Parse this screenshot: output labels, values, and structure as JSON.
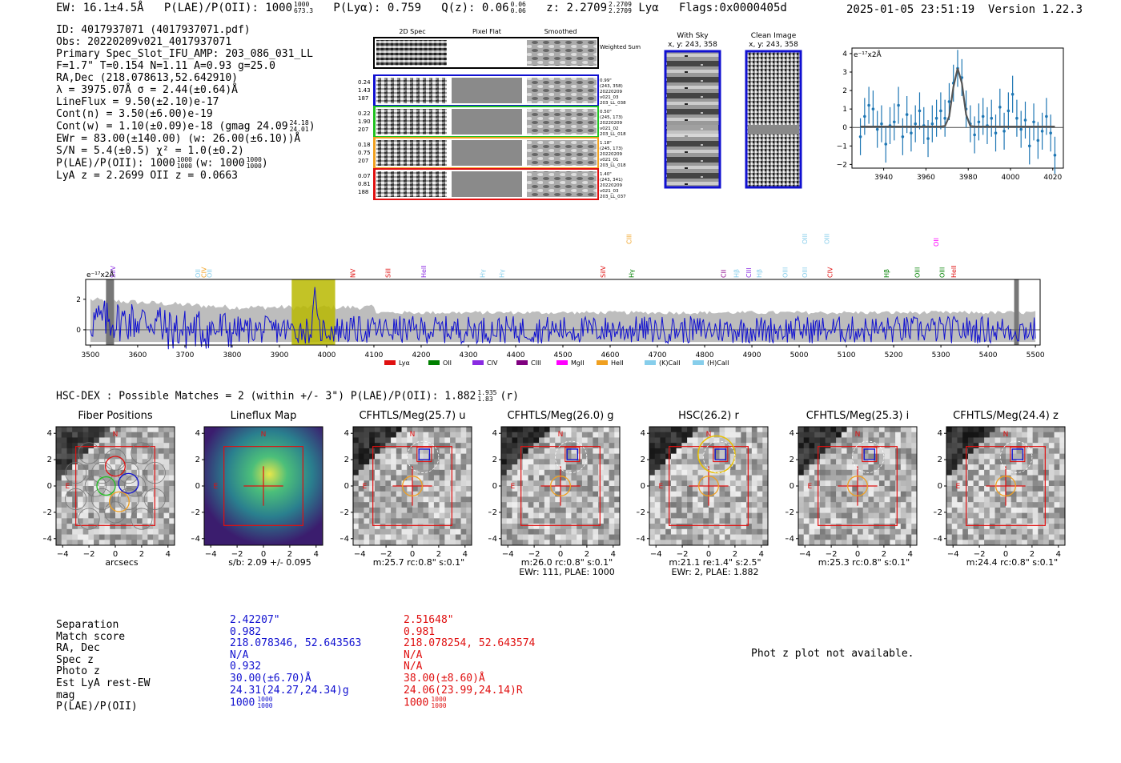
{
  "header": {
    "ew": "EW: 16.1±4.5Å",
    "plae_label": "P(LAE)/P(OII): 1000",
    "plae_sup": "1000",
    "plae_sub": "673.3",
    "plya": "P(Lyα): 0.759",
    "qz_label": "Q(z): 0.06",
    "qz_sup": "0.06",
    "qz_sub": "0.06",
    "z_label": "z: 2.2709",
    "z_sup": "2.2709",
    "z_sub": "2.2709",
    "z_line": "Lyα",
    "flags": "Flags:0x0000405d",
    "datetime": "2025-01-05 23:51:19",
    "version": "Version 1.22.3"
  },
  "info": {
    "id": "ID: 4017937071 (4017937071.pdf)",
    "obs": "Obs: 20220209v021_4017937071",
    "primary": "Primary Spec_Slot_IFU_AMP: 203_086_031_LL",
    "fit": "F=1.7\"  T=0.154  N=1.11  A=0.93  g=25.0",
    "radec": "RA,Dec (218.078613,52.642910)",
    "lambda": "λ = 3975.07Å  σ = 2.44(±0.64)Å",
    "lineflux": "LineFlux = 9.50(±2.10)e-17",
    "contn": "Cont(n) = 3.50(±6.00)e-19",
    "contw_label": "Cont(w) = 1.10(±0.09)e-18 (gmag 24.09",
    "contw_sup": "24.18",
    "contw_sub": "24.01",
    "ewr": "EWr = 83.00(±140.00) (w: 26.00(±6.10))Å",
    "sn": "S/N = 5.4(±0.5)  χ² = 1.0(±0.2)",
    "plae_a": "P(LAE)/P(OII): 1000",
    "plae_a_sup": "1000",
    "plae_a_sub": "1000",
    "plae_b": "(w: 1000",
    "plae_b_sup": "1000",
    "plae_b_sub": "1000",
    "lyaz": "LyA z = 2.2699  OII z = 0.0663"
  },
  "fiber_panel": {
    "col_titles": [
      "2D Spec",
      "Pixel Flat",
      "Smoothed"
    ],
    "weighted_sum_label": "Weighted Sum",
    "rows": [
      {
        "left": [
          "0.24",
          "1.43",
          "187"
        ],
        "right": [
          "0.99\"",
          "(243, 358)",
          "20220209",
          "v021_03",
          "203_LL_038"
        ],
        "color": "#1010d0"
      },
      {
        "left": [
          "0.22",
          "1.90",
          "207"
        ],
        "right": [
          "0.50\"",
          "(245, 173)",
          "20220209",
          "v021_02",
          "203_LL_018"
        ],
        "color": "#20c020"
      },
      {
        "left": [
          "0.18",
          "0.75",
          "207"
        ],
        "right": [
          "1.18\"",
          "(245, 173)",
          "20220209",
          "v021_01",
          "203_LL_018"
        ],
        "color": "#f0a020"
      },
      {
        "left": [
          "0.07",
          "0.81",
          "188"
        ],
        "right": [
          "1.40\"",
          "(243, 341)",
          "20220209",
          "v021_03",
          "203_LL_037"
        ],
        "color": "#e01010"
      }
    ]
  },
  "cutouts_small": {
    "with_sky_title": "With Sky",
    "with_sky_coords": "x, y: 243, 358",
    "clean_title": "Clean Image",
    "clean_coords": "x, y: 243, 358"
  },
  "zoom_chart": {
    "unit_label": "e⁻¹⁷x2Å",
    "xticks": [
      "3940",
      "3960",
      "3980",
      "4000",
      "4020"
    ],
    "yticks": [
      "4",
      "3",
      "2",
      "1",
      "0",
      "−1",
      "−2"
    ]
  },
  "full_spectrum": {
    "unit_label": "e⁻¹⁷x2Å",
    "xticks": [
      "3500",
      "3600",
      "3700",
      "3800",
      "3900",
      "4000",
      "4100",
      "4200",
      "4300",
      "4400",
      "4500",
      "4600",
      "4700",
      "4800",
      "4900",
      "5000",
      "5100",
      "5200",
      "5300",
      "5400",
      "5500"
    ],
    "yticks": [
      "2",
      "0"
    ],
    "line_markers": [
      {
        "label": "SiIV",
        "color": "#8a2be2",
        "wl": 3548,
        "row": 0
      },
      {
        "label": "OII",
        "color": "#87ceeb",
        "wl": 3727,
        "row": 0
      },
      {
        "label": "CIV",
        "color": "#f0a020",
        "wl": 3740,
        "row": 0
      },
      {
        "label": "OII",
        "color": "#87ceeb",
        "wl": 3752,
        "row": 0
      },
      {
        "label": "NV",
        "color": "#e01010",
        "wl": 4055,
        "row": 0
      },
      {
        "label": "SiII",
        "color": "#e01010",
        "wl": 4130,
        "row": 0
      },
      {
        "label": "HeII",
        "color": "#8a2be2",
        "wl": 4205,
        "row": 0
      },
      {
        "label": "Hγ",
        "color": "#87ceeb",
        "wl": 4330,
        "row": 0
      },
      {
        "label": "Hγ",
        "color": "#87ceeb",
        "wl": 4370,
        "row": 0
      },
      {
        "label": "SiIV",
        "color": "#e01010",
        "wl": 4585,
        "row": 0
      },
      {
        "label": "CIII",
        "color": "#f0a020",
        "wl": 4640,
        "row": 1
      },
      {
        "label": "Hγ",
        "color": "#008000",
        "wl": 4645,
        "row": 0
      },
      {
        "label": "CII",
        "color": "#8a008a",
        "wl": 4840,
        "row": 0
      },
      {
        "label": "Hβ",
        "color": "#87ceeb",
        "wl": 4867,
        "row": 0
      },
      {
        "label": "CIII",
        "color": "#8a2be2",
        "wl": 4893,
        "row": 0
      },
      {
        "label": "Hβ",
        "color": "#87ceeb",
        "wl": 4915,
        "row": 0
      },
      {
        "label": "OIII",
        "color": "#87ceeb",
        "wl": 4970,
        "row": 0
      },
      {
        "label": "OIII",
        "color": "#87ceeb",
        "wl": 5012,
        "row": 1
      },
      {
        "label": "OIII",
        "color": "#87ceeb",
        "wl": 5012,
        "row": 0
      },
      {
        "label": "OIII",
        "color": "#87ceeb",
        "wl": 5058,
        "row": 1
      },
      {
        "label": "CIV",
        "color": "#e01010",
        "wl": 5065,
        "row": 0
      },
      {
        "label": "Hβ",
        "color": "#008000",
        "wl": 5185,
        "row": 0
      },
      {
        "label": "OII",
        "color": "#ff00ff",
        "wl": 5290,
        "row": 2
      },
      {
        "label": "OIII",
        "color": "#008000",
        "wl": 5250,
        "row": 0
      },
      {
        "label": "OIII",
        "color": "#008000",
        "wl": 5302,
        "row": 0
      },
      {
        "label": "HeII",
        "color": "#e01010",
        "wl": 5327,
        "row": 0
      }
    ],
    "legend": [
      {
        "label": "Lyα",
        "color": "#e01010"
      },
      {
        "label": "OII",
        "color": "#008000"
      },
      {
        "label": "CIV",
        "color": "#8a2be2"
      },
      {
        "label": "CIII",
        "color": "#800080"
      },
      {
        "label": "MgII",
        "color": "#ff00ff"
      },
      {
        "label": "HeII",
        "color": "#f0a020"
      },
      {
        "label": "(K)CaII",
        "color": "#87ceeb"
      },
      {
        "label": "(H)CaII",
        "color": "#87ceeb"
      }
    ]
  },
  "hsc": {
    "title_main": "HSC-DEX : Possible Matches = 2 (within +/- 3\")  P(LAE)/P(OII): 1.882",
    "title_sup": "1.935",
    "title_sub": "1.83",
    "title_tail": "(r)",
    "cutouts": [
      {
        "title": "Fiber Positions",
        "caption": [
          "arcsecs"
        ]
      },
      {
        "title": "Lineflux Map",
        "caption": [
          "s/b: 2.09 +/- 0.095"
        ]
      },
      {
        "title": "CFHTLS/Meg(25.7) u",
        "caption": [
          "m:25.7 rc:0.8\"  s:0.1\""
        ]
      },
      {
        "title": "CFHTLS/Meg(26.0) g",
        "caption": [
          "m:26.0 rc:0.8\"  s:0.1\"",
          "EWr: 111, PLAE: 1000"
        ]
      },
      {
        "title": "HSC(26.2) r",
        "caption": [
          "m:21.1  re:1.4\"  s:2.5\"",
          "EWr: 2, PLAE: 1.882"
        ]
      },
      {
        "title": "CFHTLS/Meg(25.3) i",
        "caption": [
          "m:25.3 rc:0.8\"  s:0.1\""
        ]
      },
      {
        "title": "CFHTLS/Meg(24.4) z",
        "caption": [
          "m:24.4 rc:0.8\"  s:0.1\""
        ]
      }
    ],
    "axis_ticks_y": [
      "4",
      "2",
      "0",
      "−2",
      "−4"
    ],
    "axis_ticks_x": [
      "−4",
      "−2",
      "0",
      "2",
      "4"
    ],
    "north_label": "N",
    "east_label": "E"
  },
  "matches": {
    "labels": [
      "Separation",
      "Match score",
      "RA, Dec",
      "Spec z",
      "Photo z",
      "Est LyA rest-EW",
      "mag",
      "P(LAE)/P(OII)"
    ],
    "blue": [
      "2.42207\"",
      "0.982",
      "218.078346, 52.643563",
      "N/A",
      "0.932",
      "30.00(±6.70)Å",
      "24.31(24.27,24.34)g",
      "1000"
    ],
    "blue_plae_sup": "1000",
    "blue_plae_sub": "1000",
    "red": [
      "2.51648\"",
      "0.981",
      "218.078254, 52.643574",
      "N/A",
      "N/A",
      "38.00(±8.60)Å",
      "24.06(23.99,24.14)R",
      "1000"
    ],
    "red_plae_sup": "1000",
    "red_plae_sub": "1000"
  },
  "photz_msg": "Phot z plot not available.",
  "chart_data": [
    {
      "type": "line",
      "title": "",
      "xlabel": "",
      "ylabel": "e-17 x2Å",
      "xlim": [
        3925,
        4025
      ],
      "ylim": [
        -2.2,
        4.3
      ],
      "x": [
        3929,
        3931,
        3933,
        3935,
        3937,
        3939,
        3941,
        3943,
        3945,
        3947,
        3949,
        3951,
        3953,
        3955,
        3957,
        3959,
        3961,
        3963,
        3965,
        3967,
        3969,
        3971,
        3973,
        3975,
        3977,
        3979,
        3981,
        3983,
        3985,
        3987,
        3989,
        3991,
        3993,
        3995,
        3997,
        3999,
        4001,
        4003,
        4005,
        4007,
        4009,
        4011,
        4013,
        4015,
        4017,
        4019,
        4021
      ],
      "series": [
        {
          "name": "data",
          "values": [
            -0.5,
            0.6,
            1.2,
            1.0,
            -0.1,
            0.2,
            -0.9,
            0.1,
            0.3,
            1.2,
            -0.5,
            0.7,
            -0.3,
            0.2,
            0.9,
            0.1,
            -0.6,
            0.2,
            0.5,
            0.9,
            0.5,
            1.4,
            2.4,
            3.2,
            2.7,
            1.0,
            0.2,
            -0.4,
            0.3,
            0.6,
            0.1,
            0.5,
            -0.3,
            1.1,
            -0.2,
            0.9,
            1.8,
            0.5,
            -0.1,
            0.4,
            -1.0,
            0.3,
            -0.7,
            -0.2,
            0.6,
            -0.3,
            -1.5
          ]
        },
        {
          "name": "model",
          "values": [
            0.05,
            0.05,
            0.05,
            0.05,
            0.05,
            0.05,
            0.05,
            0.05,
            0.05,
            0.05,
            0.05,
            0.05,
            0.05,
            0.05,
            0.05,
            0.05,
            0.05,
            0.05,
            0.05,
            0.05,
            0.08,
            0.6,
            2.2,
            3.2,
            2.4,
            0.7,
            0.08,
            0.05,
            0.05,
            0.05,
            0.05,
            0.05,
            0.05,
            0.05,
            0.05,
            0.05,
            0.05,
            0.05,
            0.05,
            0.05,
            0.05,
            0.05,
            0.05,
            0.05,
            0.05,
            0.05,
            0.05
          ]
        }
      ],
      "errors": 1.0
    },
    {
      "type": "line",
      "title": "",
      "xlabel": "",
      "ylabel": "e-17 x2Å",
      "xlim": [
        3490,
        5510
      ],
      "ylim": [
        -1.0,
        3.3
      ],
      "series_description": "blue flux spectrum over grey error band",
      "highlight_region": [
        3926,
        4018
      ],
      "masked_regions": [
        [
          3533,
          3550
        ],
        [
          5455,
          5465
        ]
      ],
      "series": [
        {
          "name": "flux",
          "x_step": 5,
          "x_start": 3500
        },
        {
          "name": "error",
          "x_step": 5,
          "x_start": 3500
        }
      ]
    }
  ]
}
